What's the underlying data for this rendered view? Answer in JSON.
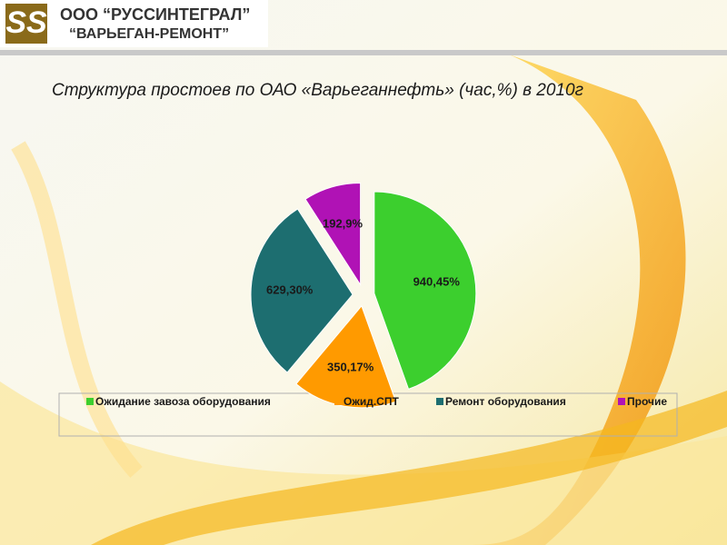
{
  "logo": {
    "line1": "ООО “РУССИНТЕГРАЛ”",
    "line2": "“ВАРЬЕГАН-РЕМОНТ”"
  },
  "chart_data": {
    "type": "pie",
    "title": "Структура простоев по ОАО «Варьеганнефть» (час,%) в 2010г",
    "categories": [
      "Ожидание завоза оборудования",
      "Ожид.СПТ",
      "Ремонт оборудования",
      "Прочие"
    ],
    "values": [
      940,
      350,
      629,
      192
    ],
    "value_labels": [
      "940,45%",
      "350,17%",
      "629,30%",
      "192,9%"
    ],
    "colors": [
      "#3ccf2e",
      "#ff9a00",
      "#1d6e70",
      "#b012b5"
    ],
    "legend": "bottom"
  }
}
